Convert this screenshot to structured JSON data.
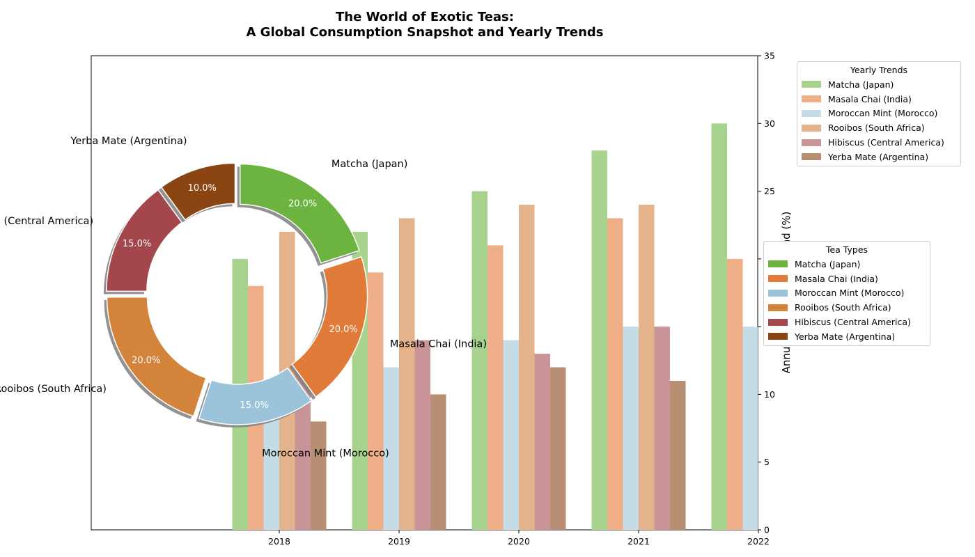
{
  "chart_data": {
    "title_lines": [
      "The World of Exotic Teas:",
      "A Global Consumption Snapshot and Yearly Trends"
    ],
    "pie": {
      "type": "pie",
      "style": "donut, exploded wedges with shadow",
      "slices": [
        {
          "label": "Matcha (Japan)",
          "value": 20.0,
          "pct_label": "20.0%",
          "color": "#6cb33f"
        },
        {
          "label": "Masala Chai (India)",
          "value": 20.0,
          "pct_label": "20.0%",
          "color": "#e07b39"
        },
        {
          "label": "Moroccan Mint (Morocco)",
          "value": 15.0,
          "pct_label": "15.0%",
          "color": "#9bc4da"
        },
        {
          "label": "Rooibos (South Africa)",
          "value": 20.0,
          "pct_label": "20.0%",
          "color": "#d4843a"
        },
        {
          "label": "Hibiscus (Central America)",
          "value": 15.0,
          "pct_label": "15.0%",
          "color": "#a3474c"
        },
        {
          "label": "Yerba Mate (Argentina)",
          "value": 10.0,
          "pct_label": "10.0%",
          "color": "#8b4513"
        }
      ],
      "legend_title": "Tea Types"
    },
    "bars": {
      "type": "bar",
      "categories": [
        "2018",
        "2019",
        "2020",
        "2021",
        "2022"
      ],
      "ylabel": "Annual Consumption Trend (%)",
      "ylim": [
        0,
        35
      ],
      "yticks": [
        "0",
        "5",
        "10",
        "15",
        "20",
        "25",
        "30",
        "35"
      ],
      "legend_title": "Yearly Trends",
      "series": [
        {
          "name": "Matcha (Japan)",
          "color": "#a8d38f",
          "values": [
            20,
            22,
            25,
            28,
            30
          ]
        },
        {
          "name": "Masala Chai (India)",
          "color": "#edae88",
          "values": [
            18,
            19,
            21,
            23,
            20
          ]
        },
        {
          "name": "Moroccan Mint (Morocco)",
          "color": "#c3dce6",
          "values": [
            10,
            12,
            14,
            15,
            15
          ]
        },
        {
          "name": "Rooibos (South Africa)",
          "color": "#e5b38b",
          "values": [
            22,
            23,
            24,
            24,
            24
          ]
        },
        {
          "name": "Hibiscus (Central America)",
          "color": "#c89497",
          "values": [
            12,
            14,
            13,
            15,
            14
          ]
        },
        {
          "name": "Yerba Mate (Argentina)",
          "color": "#b88f72",
          "values": [
            8,
            10,
            12,
            11,
            12
          ]
        }
      ]
    }
  }
}
